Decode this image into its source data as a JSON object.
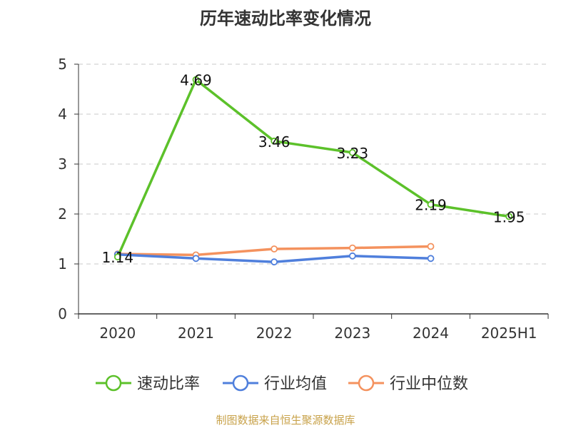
{
  "chart_data": {
    "type": "line",
    "title": "历年速动比率变化情况",
    "categories": [
      "2020",
      "2021",
      "2022",
      "2023",
      "2024",
      "2025H1"
    ],
    "ylim": [
      0,
      5
    ],
    "yticks": [
      "0",
      "1",
      "2",
      "3",
      "4",
      "5"
    ],
    "grid": true,
    "legend_position": "bottom",
    "series": [
      {
        "name": "速动比率",
        "color": "#5cc12a",
        "values": [
          1.14,
          4.69,
          3.46,
          3.23,
          2.19,
          1.95
        ],
        "labels": [
          "1.14",
          "4.69",
          "3.46",
          "3.23",
          "2.19",
          "1.95"
        ]
      },
      {
        "name": "行业均值",
        "color": "#4f7fdc",
        "values": [
          1.19,
          1.11,
          1.04,
          1.16,
          1.11,
          null
        ]
      },
      {
        "name": "行业中位数",
        "color": "#f4925e",
        "values": [
          1.2,
          1.18,
          1.3,
          1.32,
          1.35,
          null
        ]
      }
    ],
    "source": "制图数据来自恒生聚源数据库"
  }
}
